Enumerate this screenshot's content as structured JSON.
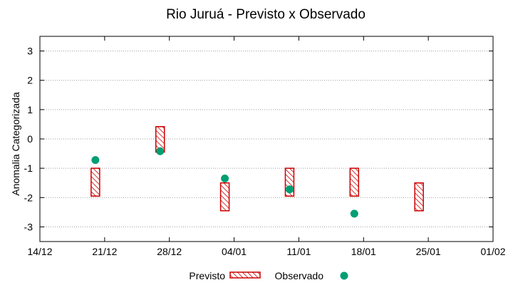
{
  "chart_data": {
    "type": "range-bar-scatter",
    "title": "Rio Juruá - Previsto x Observado",
    "xlabel": "",
    "ylabel": "Anomalia Categorizada",
    "x_ticks": [
      "14/12",
      "21/12",
      "28/12",
      "04/01",
      "11/01",
      "18/01",
      "25/01",
      "01/02"
    ],
    "y_ticks": [
      3,
      2,
      1,
      0,
      -1,
      -2,
      -3
    ],
    "ylim": [
      -3.5,
      3.5
    ],
    "grid": "horizontal-dotted",
    "legend_position": "bottom",
    "series": [
      {
        "name": "Previsto",
        "kind": "range",
        "color": "#cc0000",
        "points": [
          {
            "x": "20/12",
            "low": -1.95,
            "high": -1.0
          },
          {
            "x": "27/12",
            "low": -0.45,
            "high": 0.42
          },
          {
            "x": "03/01",
            "low": -2.45,
            "high": -1.5
          },
          {
            "x": "10/01",
            "low": -1.95,
            "high": -1.0
          },
          {
            "x": "17/01",
            "low": -1.95,
            "high": -1.0
          },
          {
            "x": "24/01",
            "low": -2.45,
            "high": -1.5
          }
        ]
      },
      {
        "name": "Observado",
        "kind": "point",
        "color": "#009e73",
        "points": [
          {
            "x": "20/12",
            "y": -0.72
          },
          {
            "x": "27/12",
            "y": -0.42
          },
          {
            "x": "03/01",
            "y": -1.35
          },
          {
            "x": "10/01",
            "y": -1.72
          },
          {
            "x": "17/01",
            "y": -2.55
          }
        ]
      }
    ]
  }
}
